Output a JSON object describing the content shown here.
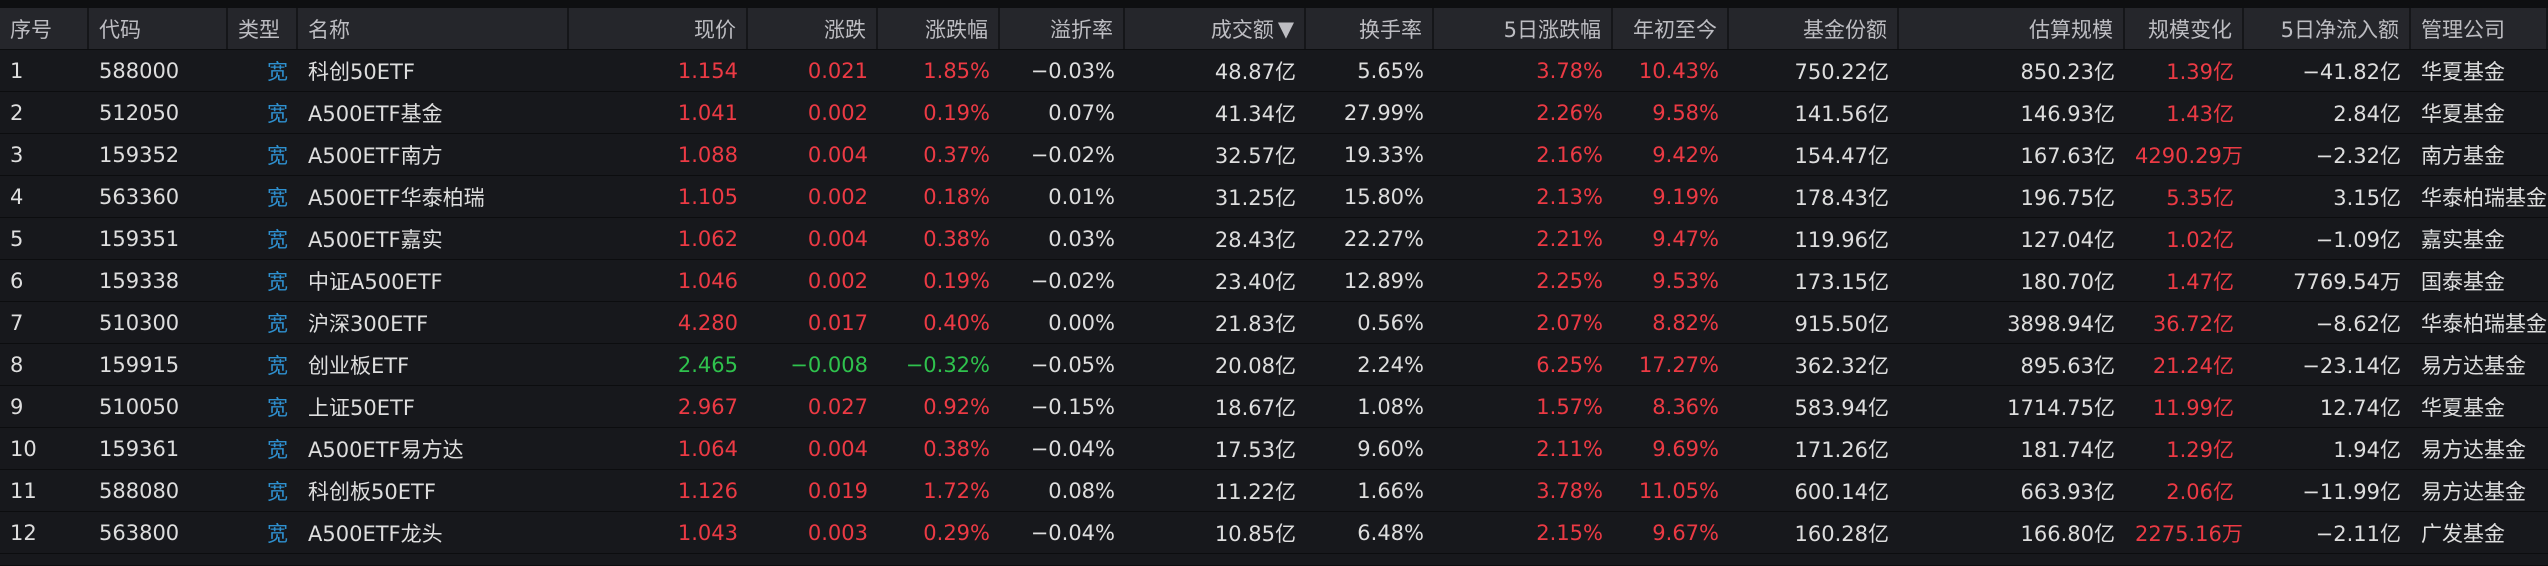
{
  "colors": {
    "up": "#ec3a44",
    "down": "#2fc24d",
    "type_badge": "#2e8fce",
    "background": "#151619",
    "header_bg": "#25262b"
  },
  "sort": {
    "column": "成交额",
    "direction": "descending",
    "icon": "triangle-down-icon",
    "glyph": "▼"
  },
  "columns": [
    {
      "key": "no",
      "label": "序号",
      "align": "l"
    },
    {
      "key": "code",
      "label": "代码",
      "align": "l"
    },
    {
      "key": "type",
      "label": "类型",
      "align": "l"
    },
    {
      "key": "name",
      "label": "名称",
      "align": "l"
    },
    {
      "key": "price",
      "label": "现价",
      "align": "r"
    },
    {
      "key": "chg",
      "label": "涨跌",
      "align": "r"
    },
    {
      "key": "pct",
      "label": "涨跌幅",
      "align": "r"
    },
    {
      "key": "premium",
      "label": "溢折率",
      "align": "r"
    },
    {
      "key": "turnover",
      "label": "成交额",
      "align": "r"
    },
    {
      "key": "turnrate",
      "label": "换手率",
      "align": "r"
    },
    {
      "key": "d5",
      "label": "5日涨跌幅",
      "align": "r"
    },
    {
      "key": "ytd",
      "label": "年初至今",
      "align": "r"
    },
    {
      "key": "shares",
      "label": "基金份额",
      "align": "r"
    },
    {
      "key": "aum",
      "label": "估算规模",
      "align": "r"
    },
    {
      "key": "aumchg",
      "label": "规模变化",
      "align": "r"
    },
    {
      "key": "flow5",
      "label": "5日净流入额",
      "align": "r"
    },
    {
      "key": "mgr",
      "label": "管理公司",
      "align": "l"
    }
  ],
  "rows": [
    {
      "no": "1",
      "code": "588000",
      "type": "宽",
      "name": "科创50ETF",
      "price": "1.154",
      "chg": "0.021",
      "pct": "1.85%",
      "premium": "−0.03%",
      "turnover": "48.87亿",
      "turnrate": "5.65%",
      "d5": "3.78%",
      "ytd": "10.43%",
      "shares": "750.22亿",
      "aum": "850.23亿",
      "aumchg": "1.39亿",
      "flow5": "−41.82亿",
      "mgr": "华夏基金",
      "dir": "up"
    },
    {
      "no": "2",
      "code": "512050",
      "type": "宽",
      "name": "A500ETF基金",
      "price": "1.041",
      "chg": "0.002",
      "pct": "0.19%",
      "premium": "0.07%",
      "turnover": "41.34亿",
      "turnrate": "27.99%",
      "d5": "2.26%",
      "ytd": "9.58%",
      "shares": "141.56亿",
      "aum": "146.93亿",
      "aumchg": "1.43亿",
      "flow5": "2.84亿",
      "mgr": "华夏基金",
      "dir": "up"
    },
    {
      "no": "3",
      "code": "159352",
      "type": "宽",
      "name": "A500ETF南方",
      "price": "1.088",
      "chg": "0.004",
      "pct": "0.37%",
      "premium": "−0.02%",
      "turnover": "32.57亿",
      "turnrate": "19.33%",
      "d5": "2.16%",
      "ytd": "9.42%",
      "shares": "154.47亿",
      "aum": "167.63亿",
      "aumchg": "4290.29万",
      "flow5": "−2.32亿",
      "mgr": "南方基金",
      "dir": "up"
    },
    {
      "no": "4",
      "code": "563360",
      "type": "宽",
      "name": "A500ETF华泰柏瑞",
      "price": "1.105",
      "chg": "0.002",
      "pct": "0.18%",
      "premium": "0.01%",
      "turnover": "31.25亿",
      "turnrate": "15.80%",
      "d5": "2.13%",
      "ytd": "9.19%",
      "shares": "178.43亿",
      "aum": "196.75亿",
      "aumchg": "5.35亿",
      "flow5": "3.15亿",
      "mgr": "华泰柏瑞基金",
      "dir": "up"
    },
    {
      "no": "5",
      "code": "159351",
      "type": "宽",
      "name": "A500ETF嘉实",
      "price": "1.062",
      "chg": "0.004",
      "pct": "0.38%",
      "premium": "0.03%",
      "turnover": "28.43亿",
      "turnrate": "22.27%",
      "d5": "2.21%",
      "ytd": "9.47%",
      "shares": "119.96亿",
      "aum": "127.04亿",
      "aumchg": "1.02亿",
      "flow5": "−1.09亿",
      "mgr": "嘉实基金",
      "dir": "up"
    },
    {
      "no": "6",
      "code": "159338",
      "type": "宽",
      "name": "中证A500ETF",
      "price": "1.046",
      "chg": "0.002",
      "pct": "0.19%",
      "premium": "−0.02%",
      "turnover": "23.40亿",
      "turnrate": "12.89%",
      "d5": "2.25%",
      "ytd": "9.53%",
      "shares": "173.15亿",
      "aum": "180.70亿",
      "aumchg": "1.47亿",
      "flow5": "7769.54万",
      "mgr": "国泰基金",
      "dir": "up"
    },
    {
      "no": "7",
      "code": "510300",
      "type": "宽",
      "name": "沪深300ETF",
      "price": "4.280",
      "chg": "0.017",
      "pct": "0.40%",
      "premium": "0.00%",
      "turnover": "21.83亿",
      "turnrate": "0.56%",
      "d5": "2.07%",
      "ytd": "8.82%",
      "shares": "915.50亿",
      "aum": "3898.94亿",
      "aumchg": "36.72亿",
      "flow5": "−8.62亿",
      "mgr": "华泰柏瑞基金",
      "dir": "up"
    },
    {
      "no": "8",
      "code": "159915",
      "type": "宽",
      "name": "创业板ETF",
      "price": "2.465",
      "chg": "−0.008",
      "pct": "−0.32%",
      "premium": "−0.05%",
      "turnover": "20.08亿",
      "turnrate": "2.24%",
      "d5": "6.25%",
      "ytd": "17.27%",
      "shares": "362.32亿",
      "aum": "895.63亿",
      "aumchg": "21.24亿",
      "flow5": "−23.14亿",
      "mgr": "易方达基金",
      "dir": "down"
    },
    {
      "no": "9",
      "code": "510050",
      "type": "宽",
      "name": "上证50ETF",
      "price": "2.967",
      "chg": "0.027",
      "pct": "0.92%",
      "premium": "−0.15%",
      "turnover": "18.67亿",
      "turnrate": "1.08%",
      "d5": "1.57%",
      "ytd": "8.36%",
      "shares": "583.94亿",
      "aum": "1714.75亿",
      "aumchg": "11.99亿",
      "flow5": "12.74亿",
      "mgr": "华夏基金",
      "dir": "up"
    },
    {
      "no": "10",
      "code": "159361",
      "type": "宽",
      "name": "A500ETF易方达",
      "price": "1.064",
      "chg": "0.004",
      "pct": "0.38%",
      "premium": "−0.04%",
      "turnover": "17.53亿",
      "turnrate": "9.60%",
      "d5": "2.11%",
      "ytd": "9.69%",
      "shares": "171.26亿",
      "aum": "181.74亿",
      "aumchg": "1.29亿",
      "flow5": "1.94亿",
      "mgr": "易方达基金",
      "dir": "up"
    },
    {
      "no": "11",
      "code": "588080",
      "type": "宽",
      "name": "科创板50ETF",
      "price": "1.126",
      "chg": "0.019",
      "pct": "1.72%",
      "premium": "0.08%",
      "turnover": "11.22亿",
      "turnrate": "1.66%",
      "d5": "3.78%",
      "ytd": "11.05%",
      "shares": "600.14亿",
      "aum": "663.93亿",
      "aumchg": "2.06亿",
      "flow5": "−11.99亿",
      "mgr": "易方达基金",
      "dir": "up"
    },
    {
      "no": "12",
      "code": "563800",
      "type": "宽",
      "name": "A500ETF龙头",
      "price": "1.043",
      "chg": "0.003",
      "pct": "0.29%",
      "premium": "−0.04%",
      "turnover": "10.85亿",
      "turnrate": "6.48%",
      "d5": "2.15%",
      "ytd": "9.67%",
      "shares": "160.28亿",
      "aum": "166.80亿",
      "aumchg": "2275.16万",
      "flow5": "−2.11亿",
      "mgr": "广发基金",
      "dir": "up"
    }
  ]
}
